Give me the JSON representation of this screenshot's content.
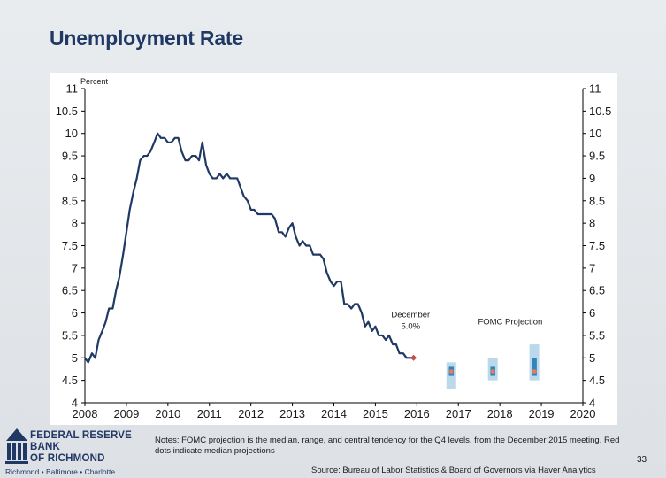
{
  "slide": {
    "title": "Unemployment Rate",
    "page_number": "33",
    "notes": "Notes: FOMC projection is the median, range, and central tendency for the Q4 levels, from the December 2015 meeting. Red dots indicate median projections",
    "source": "Source: Bureau of Labor Statistics & Board of Governors via Haver Analytics",
    "logo": {
      "line1": "FEDERAL RESERVE BANK",
      "line2": "OF RICHMOND",
      "cities": "Richmond • Baltimore • Charlotte"
    }
  },
  "colors": {
    "line": "#1f3864",
    "title": "#1f3864",
    "range_band": "#bcd9ec",
    "central_tendency": "#2f86b7",
    "median_dot": "#e8795f",
    "latest_marker": "#c0504d"
  },
  "chart_data": {
    "type": "line",
    "title": "Unemployment Rate",
    "ylabel": "Percent",
    "xlabel": "",
    "ylim": [
      4,
      11
    ],
    "xlim": [
      2008,
      2020
    ],
    "yticks": [
      "11",
      "10.5",
      "10",
      "9.5",
      "9",
      "8.5",
      "8",
      "7.5",
      "7",
      "6.5",
      "6",
      "5.5",
      "5",
      "4.5",
      "4"
    ],
    "yticks_right": [
      "11",
      "10.5",
      "10",
      "9.5",
      "9",
      "8.5",
      "8",
      "7.5",
      "7",
      "6.5",
      "6",
      "5.5",
      "5",
      "4.5",
      "4"
    ],
    "xticks": [
      "2008",
      "2009",
      "2010",
      "2011",
      "2012",
      "2013",
      "2014",
      "2015",
      "2016",
      "2017",
      "2018",
      "2019",
      "2020"
    ],
    "grid": false,
    "series": [
      {
        "type": "line",
        "x": [
          2008.0,
          2008.08,
          2008.17,
          2008.25,
          2008.33,
          2008.42,
          2008.5,
          2008.58,
          2008.67,
          2008.75,
          2008.83,
          2008.92,
          2009.0,
          2009.08,
          2009.17,
          2009.25,
          2009.33,
          2009.42,
          2009.5,
          2009.58,
          2009.67,
          2009.75,
          2009.83,
          2009.92,
          2010.0,
          2010.08,
          2010.17,
          2010.25,
          2010.33,
          2010.42,
          2010.5,
          2010.58,
          2010.67,
          2010.75,
          2010.83,
          2010.92,
          2011.0,
          2011.08,
          2011.17,
          2011.25,
          2011.33,
          2011.42,
          2011.5,
          2011.58,
          2011.67,
          2011.75,
          2011.83,
          2011.92,
          2012.0,
          2012.08,
          2012.17,
          2012.25,
          2012.33,
          2012.42,
          2012.5,
          2012.58,
          2012.67,
          2012.75,
          2012.83,
          2012.92,
          2013.0,
          2013.08,
          2013.17,
          2013.25,
          2013.33,
          2013.42,
          2013.5,
          2013.58,
          2013.67,
          2013.75,
          2013.83,
          2013.92,
          2014.0,
          2014.08,
          2014.17,
          2014.25,
          2014.33,
          2014.42,
          2014.5,
          2014.58,
          2014.67,
          2014.75,
          2014.83,
          2014.92,
          2015.0,
          2015.08,
          2015.17,
          2015.25,
          2015.33,
          2015.42,
          2015.5,
          2015.58,
          2015.67,
          2015.75,
          2015.83,
          2015.92
        ],
        "y": [
          5.0,
          4.9,
          5.1,
          5.0,
          5.4,
          5.6,
          5.8,
          6.1,
          6.1,
          6.5,
          6.8,
          7.3,
          7.8,
          8.3,
          8.7,
          9.0,
          9.4,
          9.5,
          9.5,
          9.6,
          9.8,
          10.0,
          9.9,
          9.9,
          9.8,
          9.8,
          9.9,
          9.9,
          9.6,
          9.4,
          9.4,
          9.5,
          9.5,
          9.4,
          9.8,
          9.3,
          9.1,
          9.0,
          9.0,
          9.1,
          9.0,
          9.1,
          9.0,
          9.0,
          9.0,
          8.8,
          8.6,
          8.5,
          8.3,
          8.3,
          8.2,
          8.2,
          8.2,
          8.2,
          8.2,
          8.1,
          7.8,
          7.8,
          7.7,
          7.9,
          8.0,
          7.7,
          7.5,
          7.6,
          7.5,
          7.5,
          7.3,
          7.3,
          7.3,
          7.2,
          6.9,
          6.7,
          6.6,
          6.7,
          6.7,
          6.2,
          6.2,
          6.1,
          6.2,
          6.2,
          6.0,
          5.7,
          5.8,
          5.6,
          5.7,
          5.5,
          5.5,
          5.4,
          5.5,
          5.3,
          5.3,
          5.1,
          5.1,
          5.0,
          5.0,
          5.0
        ]
      }
    ],
    "latest_point": {
      "x": 2015.92,
      "y": 5.0
    },
    "annotations": [
      {
        "text": "December",
        "x": 2015.85,
        "y": 5.9
      },
      {
        "text": "5.0%",
        "x": 2015.85,
        "y": 5.65
      },
      {
        "text": "FOMC Projection",
        "x": 2018.25,
        "y": 5.75
      }
    ],
    "projections": [
      {
        "x": 2016.83,
        "range": [
          4.3,
          4.9
        ],
        "central_tendency": [
          4.6,
          4.8
        ],
        "median": 4.7
      },
      {
        "x": 2017.83,
        "range": [
          4.5,
          5.0
        ],
        "central_tendency": [
          4.6,
          4.8
        ],
        "median": 4.7
      },
      {
        "x": 2018.83,
        "range": [
          4.5,
          5.3
        ],
        "central_tendency": [
          4.6,
          5.0
        ],
        "median": 4.7
      }
    ]
  }
}
